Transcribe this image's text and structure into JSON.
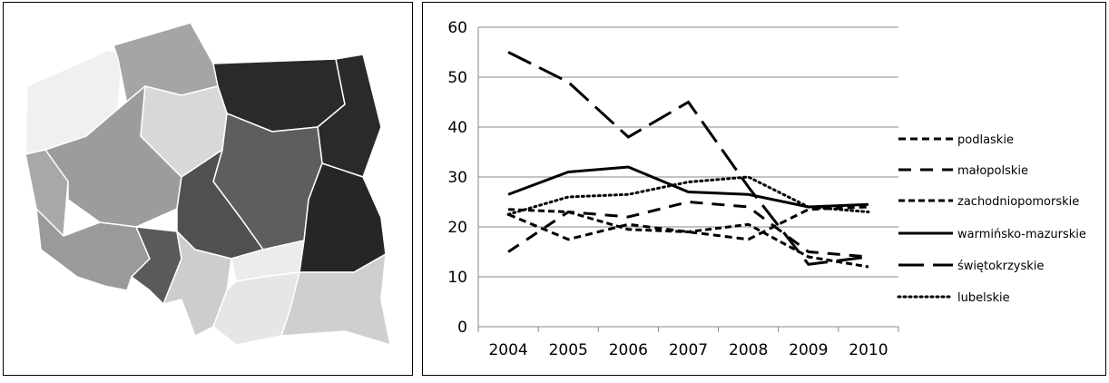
{
  "chart_data": {
    "type": "line",
    "categories": [
      "2004",
      "2005",
      "2006",
      "2007",
      "2008",
      "2009",
      "2010"
    ],
    "ylim": [
      0,
      60
    ],
    "yticks": [
      0,
      10,
      20,
      30,
      40,
      50,
      60
    ],
    "grid": true,
    "legend": "right",
    "series": [
      {
        "name": "podlaskie",
        "color": "#000000",
        "values": [
          22.5,
          17.5,
          20.5,
          19,
          17.5,
          23.5,
          24
        ]
      },
      {
        "name": "małopolskie",
        "color": "#000000",
        "values": [
          15,
          23,
          22,
          25,
          24,
          15,
          14
        ]
      },
      {
        "name": "zachodniopomorskie",
        "color": "#000000",
        "values": [
          23.5,
          23,
          19.5,
          19,
          20.5,
          14,
          12
        ]
      },
      {
        "name": "warmińsko-mazurskie",
        "color": "#000000",
        "values": [
          26.5,
          31,
          32,
          27,
          26.5,
          24,
          24.5
        ]
      },
      {
        "name": "świętokrzyskie",
        "color": "#000000",
        "values": [
          55,
          49,
          38,
          45,
          28,
          12.5,
          14
        ]
      },
      {
        "name": "lubelskie",
        "color": "#000000",
        "values": [
          22.5,
          26,
          26.5,
          29,
          30,
          24,
          23
        ]
      }
    ]
  }
}
